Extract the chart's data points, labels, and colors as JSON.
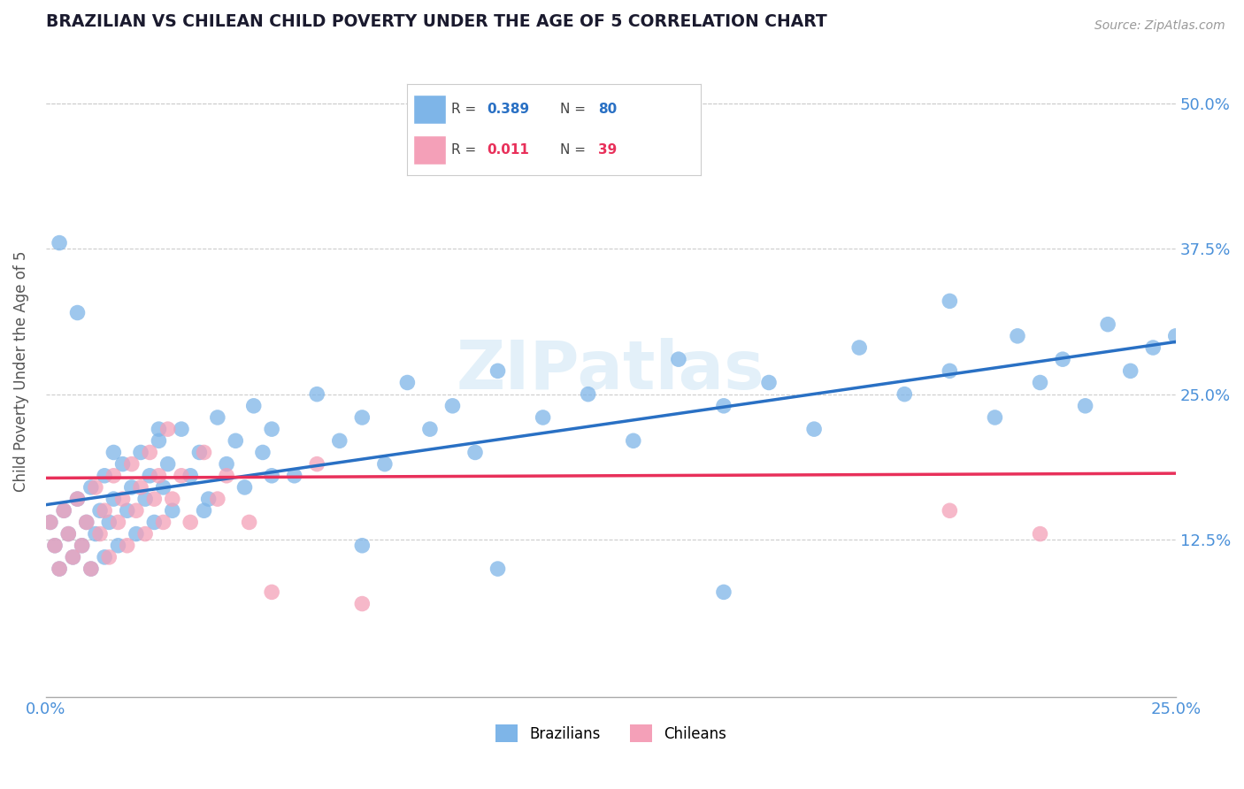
{
  "title": "BRAZILIAN VS CHILEAN CHILD POVERTY UNDER THE AGE OF 5 CORRELATION CHART",
  "source": "Source: ZipAtlas.com",
  "ylabel": "Child Poverty Under the Age of 5",
  "xlim": [
    0.0,
    0.25
  ],
  "ylim": [
    -0.01,
    0.55
  ],
  "xticks": [
    0.0,
    0.25
  ],
  "xtick_labels": [
    "0.0%",
    "25.0%"
  ],
  "ytick_positions": [
    0.125,
    0.25,
    0.375,
    0.5
  ],
  "ytick_labels": [
    "12.5%",
    "25.0%",
    "37.5%",
    "50.0%"
  ],
  "brazil_R": 0.389,
  "brazil_N": 80,
  "chile_R": 0.011,
  "chile_N": 39,
  "brazil_color": "#7eb5e8",
  "chile_color": "#f4a0b8",
  "brazil_line_color": "#2970c4",
  "chile_line_color": "#e8305a",
  "legend_label_brazil": "Brazilians",
  "legend_label_chile": "Chileans",
  "title_color": "#1a1a2e",
  "axis_label_color": "#4a90d9",
  "watermark": "ZIPatlas",
  "background_color": "#ffffff",
  "brazil_x": [
    0.001,
    0.002,
    0.003,
    0.004,
    0.005,
    0.006,
    0.007,
    0.008,
    0.009,
    0.01,
    0.01,
    0.011,
    0.012,
    0.013,
    0.013,
    0.014,
    0.015,
    0.016,
    0.017,
    0.018,
    0.019,
    0.02,
    0.021,
    0.022,
    0.023,
    0.024,
    0.025,
    0.026,
    0.027,
    0.028,
    0.03,
    0.032,
    0.034,
    0.036,
    0.038,
    0.04,
    0.042,
    0.044,
    0.046,
    0.048,
    0.05,
    0.055,
    0.06,
    0.065,
    0.07,
    0.075,
    0.08,
    0.085,
    0.09,
    0.095,
    0.1,
    0.11,
    0.12,
    0.13,
    0.14,
    0.15,
    0.16,
    0.17,
    0.18,
    0.19,
    0.2,
    0.21,
    0.215,
    0.22,
    0.225,
    0.23,
    0.235,
    0.24,
    0.245,
    0.25,
    0.003,
    0.007,
    0.015,
    0.025,
    0.035,
    0.05,
    0.07,
    0.1,
    0.15,
    0.2
  ],
  "brazil_y": [
    0.14,
    0.12,
    0.1,
    0.15,
    0.13,
    0.11,
    0.16,
    0.12,
    0.14,
    0.1,
    0.17,
    0.13,
    0.15,
    0.11,
    0.18,
    0.14,
    0.16,
    0.12,
    0.19,
    0.15,
    0.17,
    0.13,
    0.2,
    0.16,
    0.18,
    0.14,
    0.21,
    0.17,
    0.19,
    0.15,
    0.22,
    0.18,
    0.2,
    0.16,
    0.23,
    0.19,
    0.21,
    0.17,
    0.24,
    0.2,
    0.22,
    0.18,
    0.25,
    0.21,
    0.23,
    0.19,
    0.26,
    0.22,
    0.24,
    0.2,
    0.27,
    0.23,
    0.25,
    0.21,
    0.28,
    0.24,
    0.26,
    0.22,
    0.29,
    0.25,
    0.27,
    0.23,
    0.3,
    0.26,
    0.28,
    0.24,
    0.31,
    0.27,
    0.29,
    0.3,
    0.38,
    0.32,
    0.2,
    0.22,
    0.15,
    0.18,
    0.12,
    0.1,
    0.08,
    0.33
  ],
  "chile_x": [
    0.001,
    0.002,
    0.003,
    0.004,
    0.005,
    0.006,
    0.007,
    0.008,
    0.009,
    0.01,
    0.011,
    0.012,
    0.013,
    0.014,
    0.015,
    0.016,
    0.017,
    0.018,
    0.019,
    0.02,
    0.021,
    0.022,
    0.023,
    0.024,
    0.025,
    0.026,
    0.027,
    0.028,
    0.03,
    0.032,
    0.035,
    0.038,
    0.04,
    0.045,
    0.05,
    0.06,
    0.07,
    0.2,
    0.22
  ],
  "chile_y": [
    0.14,
    0.12,
    0.1,
    0.15,
    0.13,
    0.11,
    0.16,
    0.12,
    0.14,
    0.1,
    0.17,
    0.13,
    0.15,
    0.11,
    0.18,
    0.14,
    0.16,
    0.12,
    0.19,
    0.15,
    0.17,
    0.13,
    0.2,
    0.16,
    0.18,
    0.14,
    0.22,
    0.16,
    0.18,
    0.14,
    0.2,
    0.16,
    0.18,
    0.14,
    0.08,
    0.19,
    0.07,
    0.15,
    0.13
  ],
  "brazil_trend_x": [
    0.0,
    0.25
  ],
  "brazil_trend_y": [
    0.155,
    0.295
  ],
  "chile_trend_x": [
    0.0,
    0.25
  ],
  "chile_trend_y": [
    0.178,
    0.182
  ]
}
